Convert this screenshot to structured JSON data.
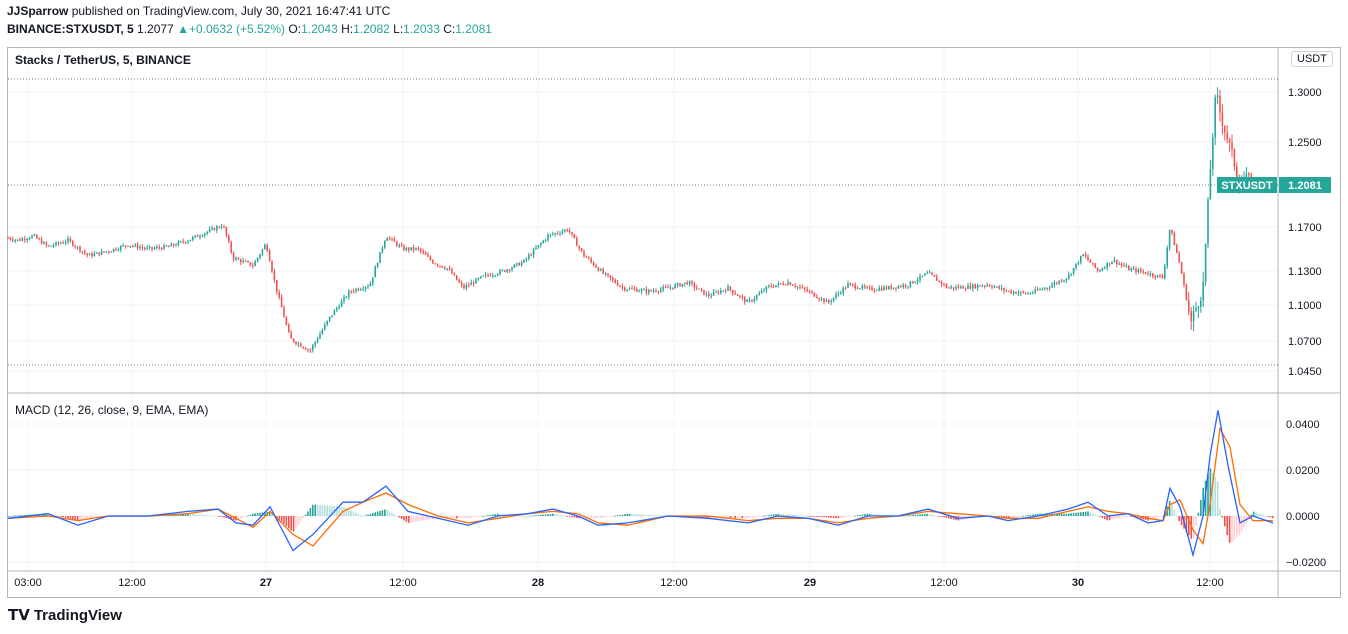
{
  "header": {
    "author": "JJSparrow",
    "published_text": "published on TradingView.com, July 30, 2021 16:47:41 UTC",
    "symbol": "BINANCE:STXUSDT, 5",
    "last": "1.2077",
    "change": "+0.0632 (+5.52%)",
    "o_label": "O:",
    "o": "1.2043",
    "h_label": "H:",
    "h": "1.2082",
    "l_label": "L:",
    "l": "1.2033",
    "c_label": "C:",
    "c": "1.2081"
  },
  "pane_title": "Stacks / TetherUS, 5, BINANCE",
  "currency_button": "USDT",
  "price_tag": {
    "symbol": "STXUSDT",
    "value": "1.2081"
  },
  "macd_title": "MACD (12, 26, close, 9, EMA, EMA)",
  "logo_text": "TradingView",
  "colors": {
    "up": "#26a69a",
    "down": "#ef5350",
    "macd": "#2962ff",
    "signal": "#ff6d00"
  },
  "chart_data": [
    {
      "type": "candlestick",
      "series_name": "STXUSDT",
      "x_tick_labels": [
        "03:00",
        "12:00",
        "27",
        "12:00",
        "28",
        "12:00",
        "29",
        "12:00",
        "30",
        "12:00"
      ],
      "y_tick_labels": [
        "1.3000",
        "1.2500",
        "1.1700",
        "1.1300",
        "1.1000",
        "1.0700",
        "1.0450"
      ],
      "ylim": [
        1.04,
        1.315
      ],
      "close_path": [
        [
          0,
          1.16
        ],
        [
          10,
          1.158
        ],
        [
          25,
          1.162
        ],
        [
          40,
          1.152
        ],
        [
          60,
          1.158
        ],
        [
          80,
          1.144
        ],
        [
          100,
          1.148
        ],
        [
          120,
          1.154
        ],
        [
          140,
          1.15
        ],
        [
          160,
          1.152
        ],
        [
          180,
          1.158
        ],
        [
          200,
          1.166
        ],
        [
          215,
          1.172
        ],
        [
          225,
          1.142
        ],
        [
          245,
          1.135
        ],
        [
          258,
          1.155
        ],
        [
          268,
          1.115
        ],
        [
          282,
          1.072
        ],
        [
          302,
          1.062
        ],
        [
          322,
          1.09
        ],
        [
          342,
          1.112
        ],
        [
          362,
          1.118
        ],
        [
          378,
          1.162
        ],
        [
          395,
          1.15
        ],
        [
          410,
          1.15
        ],
        [
          425,
          1.138
        ],
        [
          440,
          1.132
        ],
        [
          455,
          1.115
        ],
        [
          475,
          1.125
        ],
        [
          495,
          1.13
        ],
        [
          515,
          1.138
        ],
        [
          540,
          1.162
        ],
        [
          560,
          1.168
        ],
        [
          575,
          1.145
        ],
        [
          595,
          1.128
        ],
        [
          615,
          1.115
        ],
        [
          640,
          1.112
        ],
        [
          660,
          1.115
        ],
        [
          680,
          1.12
        ],
        [
          700,
          1.108
        ],
        [
          720,
          1.115
        ],
        [
          740,
          1.102
        ],
        [
          760,
          1.116
        ],
        [
          780,
          1.12
        ],
        [
          800,
          1.112
        ],
        [
          820,
          1.102
        ],
        [
          840,
          1.118
        ],
        [
          860,
          1.114
        ],
        [
          880,
          1.115
        ],
        [
          900,
          1.118
        ],
        [
          920,
          1.128
        ],
        [
          940,
          1.115
        ],
        [
          960,
          1.116
        ],
        [
          980,
          1.118
        ],
        [
          1000,
          1.112
        ],
        [
          1020,
          1.11
        ],
        [
          1040,
          1.116
        ],
        [
          1060,
          1.125
        ],
        [
          1075,
          1.145
        ],
        [
          1090,
          1.13
        ],
        [
          1105,
          1.14
        ],
        [
          1120,
          1.132
        ],
        [
          1140,
          1.128
        ],
        [
          1155,
          1.124
        ],
        [
          1162,
          1.17
        ],
        [
          1172,
          1.135
        ],
        [
          1183,
          1.085
        ],
        [
          1195,
          1.115
        ],
        [
          1202,
          1.22
        ],
        [
          1208,
          1.3
        ],
        [
          1213,
          1.275
        ],
        [
          1222,
          1.245
        ],
        [
          1232,
          1.21
        ],
        [
          1242,
          1.218
        ],
        [
          1255,
          1.208
        ],
        [
          1265,
          1.2081
        ]
      ],
      "price_lines": [
        1.308,
        1.212,
        1.05
      ]
    },
    {
      "type": "line",
      "title": "MACD (12, 26, close, 9, EMA, EMA)",
      "y_tick_labels": [
        "0.0400",
        "0.0200",
        "0.0000",
        "−0.0200"
      ],
      "ylim": [
        -0.024,
        0.048
      ],
      "series": [
        {
          "name": "MACD",
          "points": [
            [
              0,
              -0.001
            ],
            [
              40,
              0.001
            ],
            [
              70,
              -0.004
            ],
            [
              100,
              0.0
            ],
            [
              140,
              0.0
            ],
            [
              180,
              0.002
            ],
            [
              210,
              0.003
            ],
            [
              228,
              -0.003
            ],
            [
              245,
              -0.004
            ],
            [
              262,
              0.004
            ],
            [
              285,
              -0.015
            ],
            [
              305,
              -0.008
            ],
            [
              335,
              0.006
            ],
            [
              355,
              0.006
            ],
            [
              378,
              0.013
            ],
            [
              400,
              0.002
            ],
            [
              430,
              -0.001
            ],
            [
              460,
              -0.004
            ],
            [
              490,
              0.0
            ],
            [
              520,
              0.001
            ],
            [
              545,
              0.003
            ],
            [
              570,
              0.0
            ],
            [
              590,
              -0.004
            ],
            [
              620,
              -0.003
            ],
            [
              660,
              0.0
            ],
            [
              700,
              -0.001
            ],
            [
              740,
              -0.003
            ],
            [
              770,
              0.0
            ],
            [
              800,
              -0.001
            ],
            [
              830,
              -0.004
            ],
            [
              860,
              0.0
            ],
            [
              890,
              0.0
            ],
            [
              920,
              0.003
            ],
            [
              950,
              -0.001
            ],
            [
              980,
              0.0
            ],
            [
              1000,
              -0.002
            ],
            [
              1030,
              0.0
            ],
            [
              1060,
              0.003
            ],
            [
              1080,
              0.006
            ],
            [
              1100,
              0.0
            ],
            [
              1120,
              0.001
            ],
            [
              1140,
              -0.003
            ],
            [
              1155,
              -0.002
            ],
            [
              1162,
              0.012
            ],
            [
              1172,
              0.004
            ],
            [
              1185,
              -0.017
            ],
            [
              1195,
              0.0
            ],
            [
              1202,
              0.026
            ],
            [
              1210,
              0.046
            ],
            [
              1220,
              0.022
            ],
            [
              1232,
              -0.003
            ],
            [
              1245,
              0.0
            ],
            [
              1265,
              -0.003
            ]
          ]
        },
        {
          "name": "Signal",
          "points": [
            [
              0,
              -0.001
            ],
            [
              40,
              0.0
            ],
            [
              70,
              -0.002
            ],
            [
              100,
              0.0
            ],
            [
              140,
              0.0
            ],
            [
              180,
              0.001
            ],
            [
              210,
              0.003
            ],
            [
              228,
              -0.001
            ],
            [
              245,
              -0.005
            ],
            [
              262,
              0.002
            ],
            [
              285,
              -0.008
            ],
            [
              305,
              -0.013
            ],
            [
              335,
              0.002
            ],
            [
              355,
              0.006
            ],
            [
              378,
              0.01
            ],
            [
              400,
              0.005
            ],
            [
              430,
              0.0
            ],
            [
              460,
              -0.003
            ],
            [
              490,
              -0.001
            ],
            [
              520,
              0.001
            ],
            [
              545,
              0.002
            ],
            [
              570,
              0.001
            ],
            [
              590,
              -0.003
            ],
            [
              620,
              -0.004
            ],
            [
              660,
              0.0
            ],
            [
              700,
              0.0
            ],
            [
              740,
              -0.002
            ],
            [
              770,
              -0.001
            ],
            [
              800,
              -0.001
            ],
            [
              830,
              -0.003
            ],
            [
              860,
              -0.001
            ],
            [
              890,
              0.0
            ],
            [
              920,
              0.002
            ],
            [
              950,
              0.001
            ],
            [
              980,
              0.0
            ],
            [
              1000,
              -0.001
            ],
            [
              1030,
              -0.001
            ],
            [
              1060,
              0.002
            ],
            [
              1080,
              0.004
            ],
            [
              1100,
              0.002
            ],
            [
              1120,
              0.001
            ],
            [
              1140,
              -0.001
            ],
            [
              1155,
              -0.002
            ],
            [
              1162,
              0.005
            ],
            [
              1172,
              0.007
            ],
            [
              1185,
              -0.006
            ],
            [
              1195,
              -0.012
            ],
            [
              1202,
              0.005
            ],
            [
              1212,
              0.038
            ],
            [
              1222,
              0.03
            ],
            [
              1232,
              0.005
            ],
            [
              1245,
              -0.002
            ],
            [
              1265,
              -0.002
            ]
          ]
        }
      ]
    }
  ]
}
